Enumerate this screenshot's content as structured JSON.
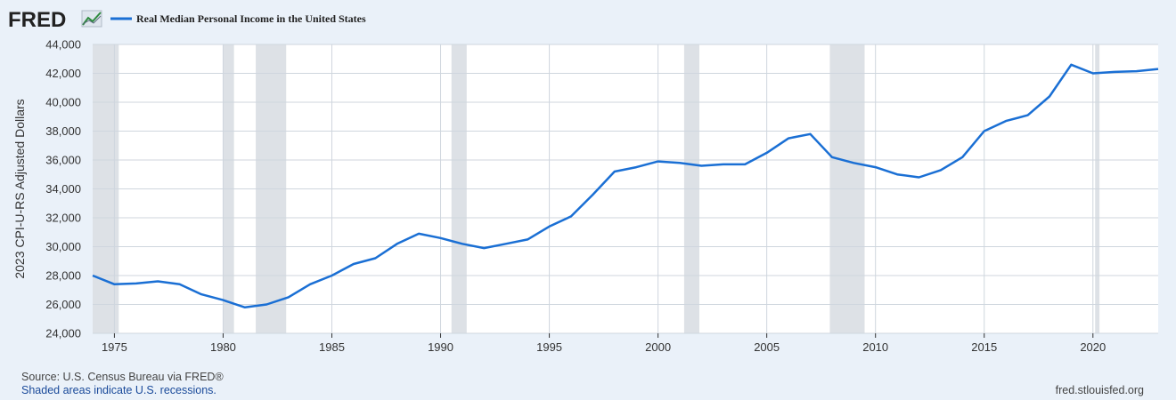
{
  "logo": {
    "text": "FRED"
  },
  "legend": {
    "label": "Real Median Personal Income in the United States"
  },
  "footer": {
    "source": "Source: U.S. Census Bureau via FRED®",
    "recessions": "Shaded areas indicate U.S. recessions.",
    "site": "fred.stlouisfed.org"
  },
  "colors": {
    "series": "#1a6fd4",
    "recession": "#dde1e6",
    "plot_bg": "#ffffff",
    "page_bg": "#eaf1f9",
    "grid": "#cfd6de"
  },
  "chart_data": {
    "type": "line",
    "title": "",
    "xlabel": "",
    "ylabel": "2023 CPI-U-RS Adjusted Dollars",
    "xlim": [
      1974,
      2023
    ],
    "ylim": [
      24000,
      44000
    ],
    "x_ticks": [
      1975,
      1980,
      1985,
      1990,
      1995,
      2000,
      2005,
      2010,
      2015,
      2020
    ],
    "y_ticks": [
      24000,
      26000,
      28000,
      30000,
      32000,
      34000,
      36000,
      38000,
      40000,
      42000,
      44000
    ],
    "y_tick_labels": [
      "24,000",
      "26,000",
      "28,000",
      "30,000",
      "32,000",
      "34,000",
      "36,000",
      "38,000",
      "40,000",
      "42,000",
      "44,000"
    ],
    "grid": true,
    "legend_position": "top-left",
    "recessions": [
      [
        1973.9,
        1975.2
      ],
      [
        1980.0,
        1980.5
      ],
      [
        1981.5,
        1982.9
      ],
      [
        1990.5,
        1991.2
      ],
      [
        2001.2,
        2001.9
      ],
      [
        2007.9,
        2009.5
      ],
      [
        2020.1,
        2020.3
      ]
    ],
    "series": [
      {
        "name": "Real Median Personal Income in the United States",
        "x": [
          1974,
          1975,
          1976,
          1977,
          1978,
          1979,
          1980,
          1981,
          1982,
          1983,
          1984,
          1985,
          1986,
          1987,
          1988,
          1989,
          1990,
          1991,
          1992,
          1993,
          1994,
          1995,
          1996,
          1997,
          1998,
          1999,
          2000,
          2001,
          2002,
          2003,
          2004,
          2005,
          2006,
          2007,
          2008,
          2009,
          2010,
          2011,
          2012,
          2013,
          2014,
          2015,
          2016,
          2017,
          2018,
          2019,
          2020,
          2021,
          2022,
          2023
        ],
        "values": [
          28000,
          27400,
          27450,
          27600,
          27400,
          26700,
          26300,
          25800,
          26000,
          26500,
          27400,
          28000,
          28800,
          29200,
          30200,
          30900,
          30600,
          30200,
          29900,
          30200,
          30500,
          31400,
          32100,
          33600,
          35200,
          35500,
          35900,
          35800,
          35600,
          35700,
          35700,
          36500,
          37500,
          37800,
          36200,
          35800,
          35500,
          35000,
          34800,
          35300,
          36200,
          38000,
          38700,
          39100,
          40400,
          42600,
          42000,
          42100,
          42150,
          42300
        ]
      }
    ]
  }
}
